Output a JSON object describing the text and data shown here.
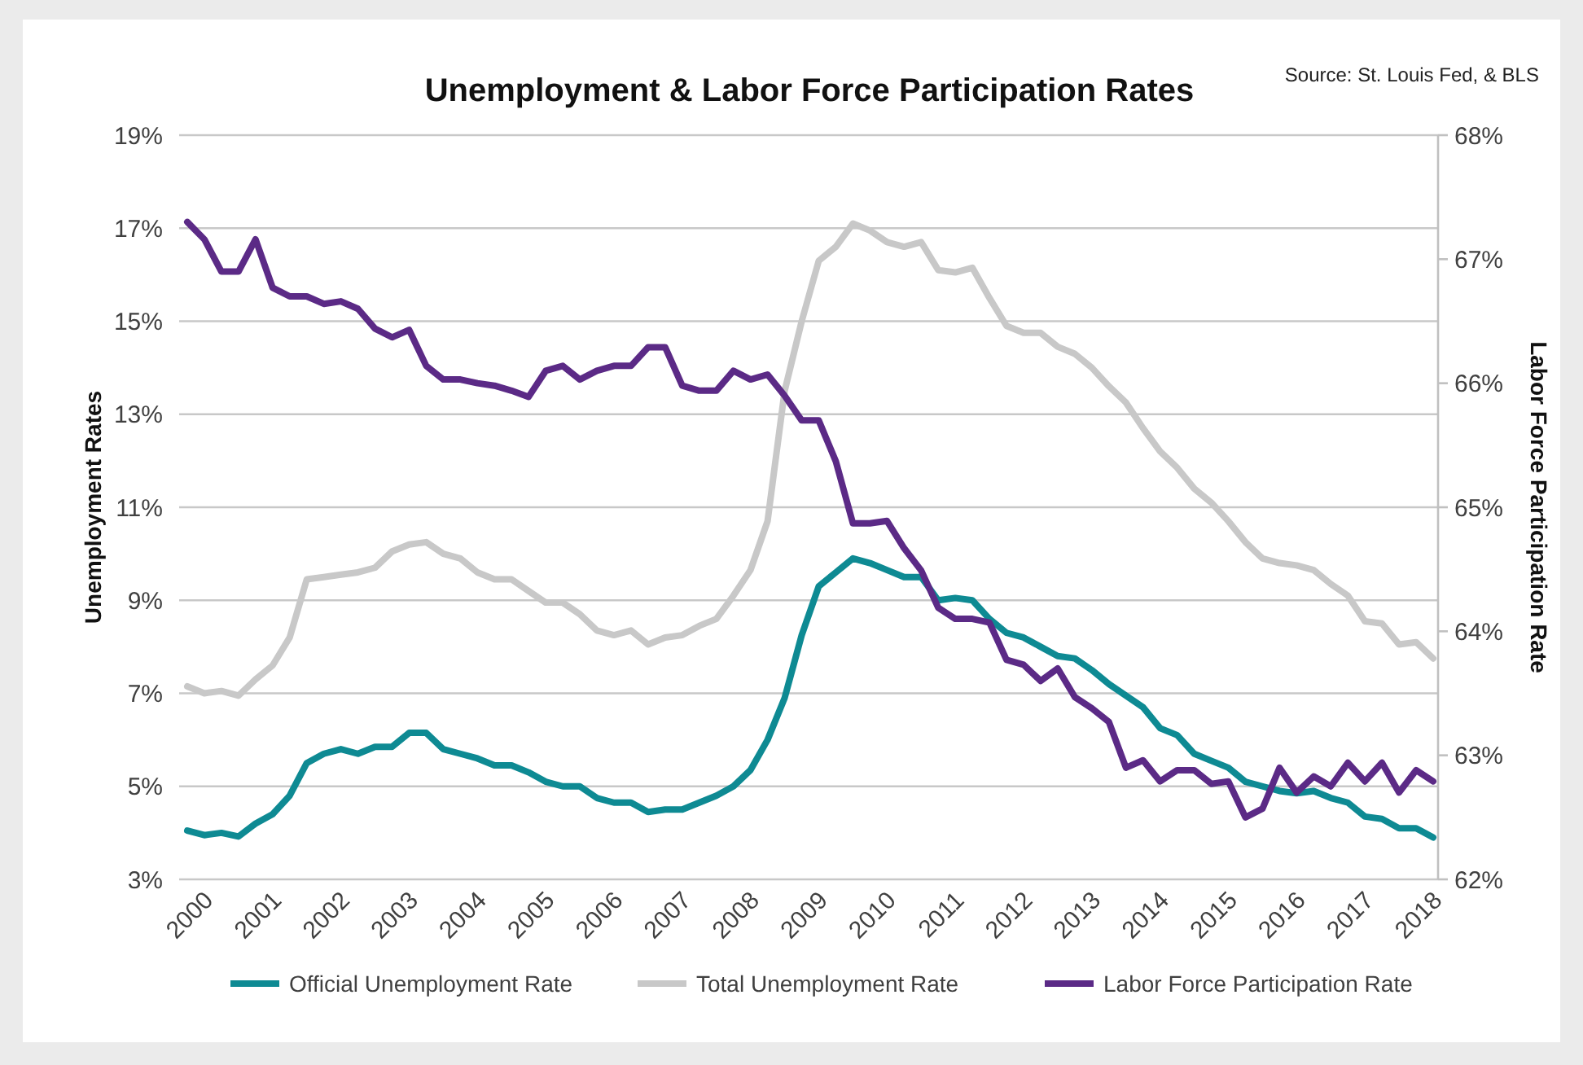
{
  "chart_data": {
    "type": "line",
    "title": "Unemployment & Labor Force Participation Rates",
    "ylabel": "Unemployment Rates",
    "y2label": "Labor Force Participation Rate",
    "annotations": [
      "Source: St. Louis Fed, & BLS"
    ],
    "categories": [
      "2000",
      null,
      null,
      null,
      "2001",
      null,
      null,
      null,
      "2002",
      null,
      null,
      null,
      "2003",
      null,
      null,
      null,
      "2004",
      null,
      null,
      null,
      "2005",
      null,
      null,
      null,
      "2006",
      null,
      null,
      null,
      "2007",
      null,
      null,
      null,
      "2008",
      null,
      null,
      null,
      "2009",
      null,
      null,
      null,
      "2010",
      null,
      null,
      null,
      "2011",
      null,
      null,
      null,
      "2012",
      null,
      null,
      null,
      "2013",
      null,
      null,
      null,
      "2014",
      null,
      null,
      null,
      "2015",
      null,
      null,
      null,
      "2016",
      null,
      null,
      null,
      "2017",
      null,
      null,
      null,
      "2018",
      null
    ],
    "series": [
      {
        "name": "Official Unemployment Rate",
        "color": "#0e8a93",
        "values": [
          4.05,
          3.95,
          4.0,
          3.92,
          4.2,
          4.4,
          4.8,
          5.5,
          5.7,
          5.8,
          5.7,
          5.85,
          5.85,
          6.15,
          6.15,
          5.8,
          5.7,
          5.6,
          5.45,
          5.45,
          5.3,
          5.1,
          5.0,
          5.0,
          4.75,
          4.65,
          4.65,
          4.45,
          4.5,
          4.5,
          4.65,
          4.8,
          5.0,
          5.35,
          6.0,
          6.9,
          8.25,
          9.3,
          9.6,
          9.9,
          9.8,
          9.65,
          9.5,
          9.5,
          9.0,
          9.05,
          9.0,
          8.6,
          8.3,
          8.2,
          8.0,
          7.8,
          7.75,
          7.5,
          7.2,
          6.95,
          6.7,
          6.25,
          6.1,
          5.7,
          5.55,
          5.4,
          5.1,
          5.0,
          4.9,
          4.85,
          4.9,
          4.75,
          4.65,
          4.35,
          4.3,
          4.1,
          4.1,
          3.9
        ]
      },
      {
        "name": "Total Unemployment Rate",
        "color": "#c8c8c8",
        "values": [
          7.15,
          7.0,
          7.05,
          6.95,
          7.3,
          7.6,
          8.2,
          9.45,
          9.5,
          9.55,
          9.6,
          9.7,
          10.05,
          10.2,
          10.25,
          10.0,
          9.9,
          9.6,
          9.45,
          9.45,
          9.2,
          8.95,
          8.95,
          8.7,
          8.35,
          8.25,
          8.35,
          8.05,
          8.2,
          8.25,
          8.45,
          8.6,
          9.1,
          9.65,
          10.7,
          13.5,
          15.0,
          16.3,
          16.6,
          17.1,
          16.95,
          16.7,
          16.6,
          16.7,
          16.1,
          16.05,
          16.15,
          15.5,
          14.9,
          14.75,
          14.75,
          14.45,
          14.3,
          14.0,
          13.6,
          13.25,
          12.7,
          12.2,
          11.85,
          11.4,
          11.1,
          10.7,
          10.25,
          9.9,
          9.8,
          9.75,
          9.65,
          9.35,
          9.1,
          8.55,
          8.5,
          8.05,
          8.1,
          7.75
        ]
      },
      {
        "name": "Labor Force Participation Rate",
        "color": "#5b2a86",
        "axis": "y2",
        "values": [
          67.3,
          67.16,
          66.9,
          66.9,
          67.16,
          66.77,
          66.7,
          66.7,
          66.64,
          66.66,
          66.6,
          66.44,
          66.37,
          66.43,
          66.14,
          66.03,
          66.03,
          66.0,
          65.98,
          65.94,
          65.89,
          66.1,
          66.14,
          66.03,
          66.1,
          66.14,
          66.14,
          66.29,
          66.29,
          65.98,
          65.94,
          65.94,
          66.1,
          66.03,
          66.07,
          65.9,
          65.7,
          65.7,
          65.37,
          64.87,
          64.87,
          64.89,
          64.67,
          64.49,
          64.19,
          64.1,
          64.1,
          64.07,
          63.77,
          63.73,
          63.6,
          63.7,
          63.47,
          63.38,
          63.27,
          62.9,
          62.96,
          62.79,
          62.88,
          62.88,
          62.77,
          62.79,
          62.5,
          62.57,
          62.9,
          62.7,
          62.83,
          62.75,
          62.94,
          62.79,
          62.94,
          62.7,
          62.88,
          62.79
        ]
      }
    ],
    "ylim": [
      3,
      19
    ],
    "yticks": [
      {
        "value": 3,
        "label": "3%"
      },
      {
        "value": 5,
        "label": "5%"
      },
      {
        "value": 7,
        "label": "7%"
      },
      {
        "value": 9,
        "label": "9%"
      },
      {
        "value": 11,
        "label": "11%"
      },
      {
        "value": 13,
        "label": "13%"
      },
      {
        "value": 15,
        "label": "15%"
      },
      {
        "value": 17,
        "label": "17%"
      },
      {
        "value": 19,
        "label": "19%"
      }
    ],
    "y2lim": [
      62,
      68
    ],
    "y2ticks": [
      {
        "value": 62,
        "label": "62%"
      },
      {
        "value": 63,
        "label": "63%"
      },
      {
        "value": 64,
        "label": "64%"
      },
      {
        "value": 65,
        "label": "65%"
      },
      {
        "value": 66,
        "label": "66%"
      },
      {
        "value": 67,
        "label": "67%"
      },
      {
        "value": 68,
        "label": "68%"
      }
    ],
    "grid": "y",
    "legend": "bottom",
    "line_style": "solid"
  }
}
